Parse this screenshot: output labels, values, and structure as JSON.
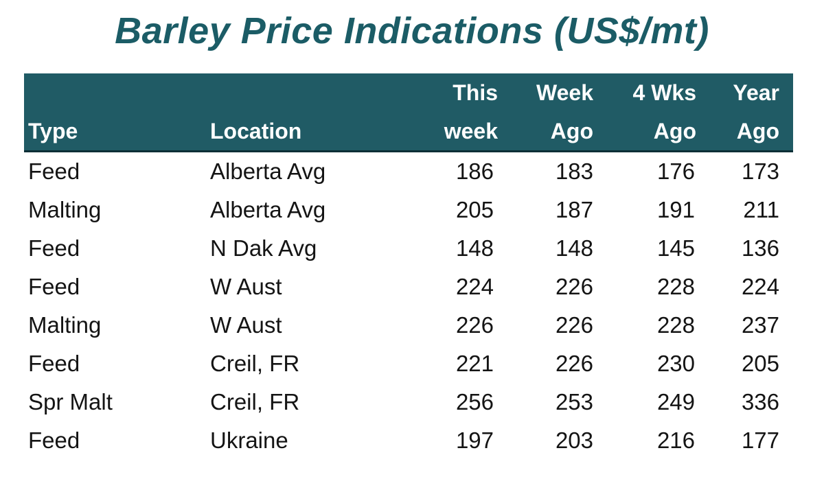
{
  "colors": {
    "title": "#1b5c66",
    "header_bg": "#205b65",
    "header_text": "#ffffff"
  },
  "chart_data": {
    "type": "table",
    "title": "Barley Price Indications (US$/mt)",
    "columns": [
      {
        "key": "type",
        "lines": [
          "",
          "Type"
        ]
      },
      {
        "key": "location",
        "lines": [
          "",
          "Location"
        ]
      },
      {
        "key": "this_week",
        "lines": [
          "This",
          "week"
        ]
      },
      {
        "key": "week_ago",
        "lines": [
          "Week",
          "Ago"
        ]
      },
      {
        "key": "four_wks_ago",
        "lines": [
          "4 Wks",
          "Ago"
        ]
      },
      {
        "key": "year_ago",
        "lines": [
          "Year",
          "Ago"
        ]
      }
    ],
    "rows": [
      {
        "type": "Feed",
        "location": "Alberta Avg",
        "this_week": 186,
        "week_ago": 183,
        "four_wks_ago": 176,
        "year_ago": 173
      },
      {
        "type": "Malting",
        "location": "Alberta Avg",
        "this_week": 205,
        "week_ago": 187,
        "four_wks_ago": 191,
        "year_ago": 211
      },
      {
        "type": "Feed",
        "location": "N Dak Avg",
        "this_week": 148,
        "week_ago": 148,
        "four_wks_ago": 145,
        "year_ago": 136
      },
      {
        "type": "Feed",
        "location": "W Aust",
        "this_week": 224,
        "week_ago": 226,
        "four_wks_ago": 228,
        "year_ago": 224
      },
      {
        "type": "Malting",
        "location": "W Aust",
        "this_week": 226,
        "week_ago": 226,
        "four_wks_ago": 228,
        "year_ago": 237
      },
      {
        "type": "Feed",
        "location": "Creil, FR",
        "this_week": 221,
        "week_ago": 226,
        "four_wks_ago": 230,
        "year_ago": 205
      },
      {
        "type": "Spr Malt",
        "location": "Creil, FR",
        "this_week": 256,
        "week_ago": 253,
        "four_wks_ago": 249,
        "year_ago": 336
      },
      {
        "type": "Feed",
        "location": "Ukraine",
        "this_week": 197,
        "week_ago": 203,
        "four_wks_ago": 216,
        "year_ago": 177
      }
    ]
  }
}
